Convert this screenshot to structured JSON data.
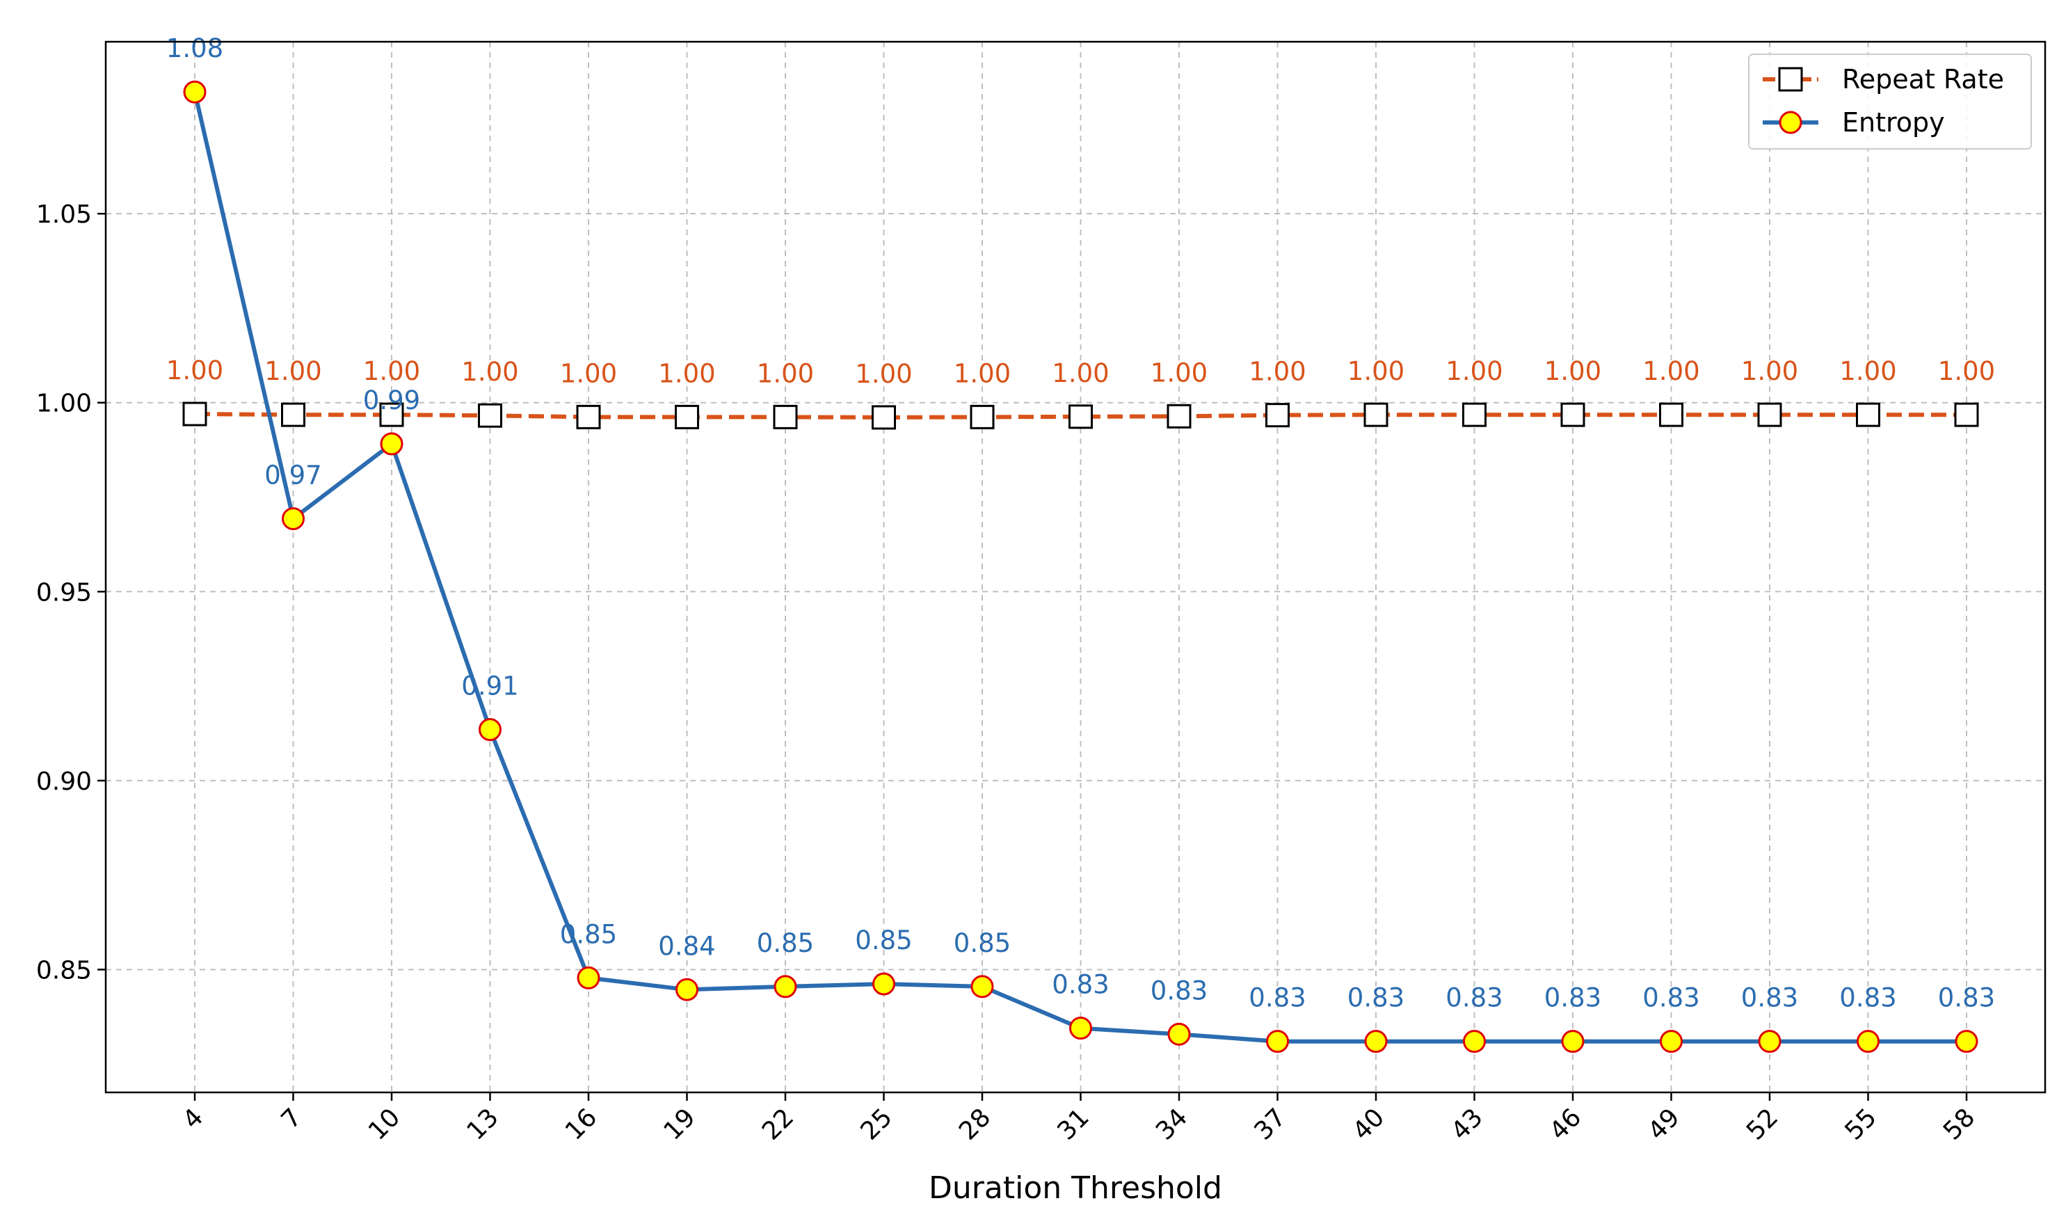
{
  "chart_data": {
    "type": "line",
    "title": "",
    "xlabel": "Duration Threshold",
    "ylabel": "",
    "x": [
      4,
      7,
      10,
      13,
      16,
      19,
      22,
      25,
      28,
      31,
      34,
      37,
      40,
      43,
      46,
      49,
      52,
      55,
      58
    ],
    "x_tick_labels": [
      "4",
      "7",
      "10",
      "13",
      "16",
      "19",
      "22",
      "25",
      "28",
      "31",
      "34",
      "37",
      "40",
      "43",
      "46",
      "49",
      "52",
      "55",
      "58"
    ],
    "y_ticks": [
      0.85,
      0.9,
      0.95,
      1.0,
      1.05
    ],
    "y_tick_labels": [
      "0.85",
      "0.90",
      "0.95",
      "1.00",
      "1.05"
    ],
    "ylim": [
      0.8175,
      1.0955
    ],
    "grid": true,
    "legend_position": "top-right",
    "series": [
      {
        "name": "Repeat Rate",
        "color": "#d95319",
        "line_style": "dashed",
        "marker": "square",
        "marker_fill": "#ffffff",
        "marker_edge": "#000000",
        "values": [
          0.997,
          0.9968,
          0.9968,
          0.9966,
          0.9962,
          0.9962,
          0.9962,
          0.9961,
          0.9962,
          0.9963,
          0.9964,
          0.9967,
          0.9968,
          0.9968,
          0.9968,
          0.9968,
          0.9968,
          0.9968,
          0.9968
        ],
        "labels": [
          "1.00",
          "1.00",
          "1.00",
          "1.00",
          "1.00",
          "1.00",
          "1.00",
          "1.00",
          "1.00",
          "1.00",
          "1.00",
          "1.00",
          "1.00",
          "1.00",
          "1.00",
          "1.00",
          "1.00",
          "1.00",
          "1.00"
        ]
      },
      {
        "name": "Entropy",
        "color": "#2b6cb0",
        "line_style": "solid",
        "marker": "circle",
        "marker_fill": "#ffff00",
        "marker_edge": "#e00000",
        "values": [
          1.0822,
          0.9693,
          0.9891,
          0.9135,
          0.8478,
          0.8447,
          0.8455,
          0.8462,
          0.8455,
          0.8345,
          0.8329,
          0.831,
          0.831,
          0.831,
          0.831,
          0.831,
          0.831,
          0.831,
          0.831
        ],
        "labels": [
          "1.08",
          "0.97",
          "0.99",
          "0.91",
          "0.85",
          "0.84",
          "0.85",
          "0.85",
          "0.85",
          "0.83",
          "0.83",
          "0.83",
          "0.83",
          "0.83",
          "0.83",
          "0.83",
          "0.83",
          "0.83",
          "0.83"
        ]
      }
    ]
  }
}
